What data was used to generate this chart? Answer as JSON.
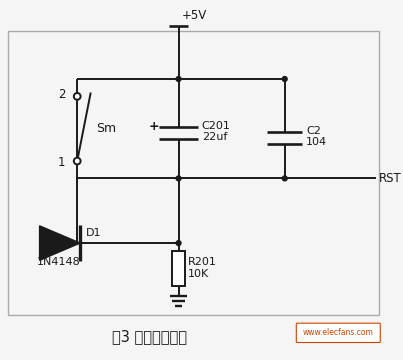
{
  "title": "图3 系统复位电路",
  "bg_color": "#f5f5f5",
  "line_color": "#1a1a1a",
  "vcc_label": "+5V",
  "sw_label": "Sm",
  "sw_pin2": "2",
  "sw_pin1": "1",
  "cap1_label": "C201",
  "cap1_value": "22uf",
  "cap2_label": "C2",
  "cap2_value": "104",
  "diode_label": "D1",
  "diode_value": "1N4148",
  "res_label": "R201",
  "res_value": "10K",
  "rst_label": "RST",
  "watermark": "www.elecfans.com",
  "lw": 1.4,
  "border_color": "#aaaaaa"
}
